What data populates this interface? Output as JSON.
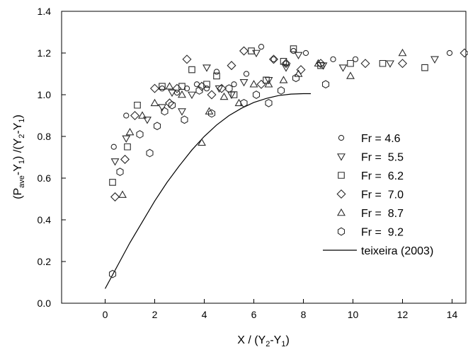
{
  "chart_data": {
    "type": "scatter",
    "title": "",
    "xlabel": {
      "parts": [
        [
          "X / (Y",
          "normal"
        ],
        [
          "2",
          "sub"
        ],
        [
          "-Y",
          "normal"
        ],
        [
          "1",
          "sub"
        ],
        [
          ")",
          "normal"
        ]
      ]
    },
    "ylabel": {
      "parts": [
        [
          "(P",
          "normal"
        ],
        [
          "ave",
          "sub"
        ],
        [
          "-Y",
          "normal"
        ],
        [
          "1",
          "sub"
        ],
        [
          ") /(Y",
          "normal"
        ],
        [
          "2",
          "sub"
        ],
        [
          "-Y",
          "normal"
        ],
        [
          "1",
          "sub"
        ],
        [
          ")",
          "normal"
        ]
      ]
    },
    "xlim": [
      -1.7,
      14.6
    ],
    "ylim": [
      0.0,
      1.4
    ],
    "x_ticks": [
      0,
      2,
      4,
      6,
      8,
      10,
      12,
      14
    ],
    "y_ticks": [
      0.0,
      0.2,
      0.4,
      0.6,
      0.8,
      1.0,
      1.2,
      1.4
    ],
    "x_tick_labels": [
      "0",
      "2",
      "4",
      "6",
      "8",
      "10",
      "12",
      "14"
    ],
    "y_tick_labels": [
      "0.0",
      "0.2",
      "0.4",
      "0.6",
      "0.8",
      "1.0",
      "1.2",
      "1.4"
    ],
    "grid": false,
    "legend_position": "right",
    "series": [
      {
        "name": "Fr = 4.6",
        "marker": "circle",
        "points": [
          [
            0.35,
            0.75
          ],
          [
            0.85,
            0.9
          ],
          [
            2.3,
            1.03
          ],
          [
            2.9,
            1.01
          ],
          [
            3.3,
            1.03
          ],
          [
            3.7,
            1.05
          ],
          [
            4.1,
            1.03
          ],
          [
            4.5,
            1.11
          ],
          [
            5.2,
            1.05
          ],
          [
            5.7,
            1.1
          ],
          [
            6.3,
            1.23
          ],
          [
            6.8,
            1.17
          ],
          [
            7.3,
            1.15
          ],
          [
            7.6,
            1.21
          ],
          [
            8.1,
            1.2
          ],
          [
            9.2,
            1.17
          ],
          [
            10.1,
            1.17
          ],
          [
            13.9,
            1.2
          ]
        ]
      },
      {
        "name": "Fr =  5.5",
        "marker": "triangle-down",
        "points": [
          [
            0.4,
            0.68
          ],
          [
            0.85,
            0.79
          ],
          [
            1.7,
            0.88
          ],
          [
            2.3,
            0.94
          ],
          [
            2.7,
            1.01
          ],
          [
            3.1,
            0.92
          ],
          [
            3.5,
            1.0
          ],
          [
            4.1,
            1.13
          ],
          [
            4.6,
            1.03
          ],
          [
            5.1,
            1.0
          ],
          [
            5.6,
            1.06
          ],
          [
            6.1,
            1.2
          ],
          [
            6.6,
            1.07
          ],
          [
            7.3,
            1.13
          ],
          [
            7.8,
            1.19
          ],
          [
            8.8,
            1.14
          ],
          [
            9.6,
            1.13
          ],
          [
            11.5,
            1.15
          ],
          [
            13.3,
            1.17
          ]
        ]
      },
      {
        "name": "Fr =  6.2",
        "marker": "square",
        "points": [
          [
            0.3,
            0.58
          ],
          [
            0.9,
            0.75
          ],
          [
            1.3,
            0.95
          ],
          [
            2.3,
            1.04
          ],
          [
            3.1,
            1.04
          ],
          [
            3.5,
            1.12
          ],
          [
            4.1,
            1.05
          ],
          [
            4.5,
            1.09
          ],
          [
            5.2,
            1.0
          ],
          [
            5.9,
            1.21
          ],
          [
            6.5,
            1.07
          ],
          [
            7.2,
            1.16
          ],
          [
            7.6,
            1.22
          ],
          [
            8.7,
            1.14
          ],
          [
            9.9,
            1.15
          ],
          [
            11.2,
            1.15
          ],
          [
            12.9,
            1.13
          ]
        ]
      },
      {
        "name": "Fr =  7.0",
        "marker": "diamond",
        "points": [
          [
            0.4,
            0.51
          ],
          [
            0.8,
            0.69
          ],
          [
            1.2,
            0.9
          ],
          [
            2.0,
            1.03
          ],
          [
            2.6,
            0.96
          ],
          [
            2.9,
            1.03
          ],
          [
            3.3,
            1.17
          ],
          [
            3.9,
            1.04
          ],
          [
            4.3,
            1.0
          ],
          [
            4.7,
            1.03
          ],
          [
            5.1,
            1.14
          ],
          [
            5.6,
            1.21
          ],
          [
            6.3,
            1.05
          ],
          [
            6.8,
            1.17
          ],
          [
            7.3,
            1.15
          ],
          [
            7.9,
            1.12
          ],
          [
            8.7,
            1.15
          ],
          [
            10.5,
            1.15
          ],
          [
            12.0,
            1.15
          ],
          [
            14.5,
            1.2
          ]
        ]
      },
      {
        "name": "Fr =  8.7",
        "marker": "triangle-up",
        "points": [
          [
            0.7,
            0.52
          ],
          [
            1.0,
            0.82
          ],
          [
            1.5,
            0.9
          ],
          [
            2.0,
            0.96
          ],
          [
            2.6,
            1.04
          ],
          [
            3.1,
            1.0
          ],
          [
            3.9,
            0.77
          ],
          [
            4.2,
            0.92
          ],
          [
            4.8,
            0.99
          ],
          [
            5.4,
            0.96
          ],
          [
            6.0,
            1.05
          ],
          [
            6.6,
            1.05
          ],
          [
            7.2,
            1.07
          ],
          [
            7.8,
            1.1
          ],
          [
            8.6,
            1.15
          ],
          [
            9.9,
            1.09
          ],
          [
            12.0,
            1.2
          ]
        ]
      },
      {
        "name": "Fr =  9.2",
        "marker": "hexagon",
        "points": [
          [
            0.3,
            0.14
          ],
          [
            0.6,
            0.63
          ],
          [
            1.4,
            0.81
          ],
          [
            1.8,
            0.72
          ],
          [
            2.1,
            0.85
          ],
          [
            2.4,
            0.92
          ],
          [
            2.7,
            0.95
          ],
          [
            3.2,
            0.88
          ],
          [
            3.8,
            1.02
          ],
          [
            4.3,
            0.91
          ],
          [
            5.0,
            1.03
          ],
          [
            5.6,
            0.96
          ],
          [
            6.1,
            1.0
          ],
          [
            6.6,
            0.96
          ],
          [
            7.1,
            1.02
          ],
          [
            7.7,
            1.08
          ],
          [
            8.9,
            1.05
          ]
        ]
      }
    ],
    "curve": {
      "name": "teixeira (2003)",
      "points": [
        [
          0,
          0.07
        ],
        [
          0.5,
          0.18
        ],
        [
          1,
          0.29
        ],
        [
          1.5,
          0.39
        ],
        [
          2,
          0.49
        ],
        [
          2.5,
          0.58
        ],
        [
          3,
          0.66
        ],
        [
          3.5,
          0.735
        ],
        [
          4,
          0.8
        ],
        [
          4.5,
          0.855
        ],
        [
          5,
          0.9
        ],
        [
          5.5,
          0.935
        ],
        [
          6,
          0.963
        ],
        [
          6.5,
          0.982
        ],
        [
          7,
          0.996
        ],
        [
          7.5,
          1.003
        ],
        [
          8,
          1.005
        ],
        [
          8.3,
          1.005
        ]
      ]
    }
  }
}
